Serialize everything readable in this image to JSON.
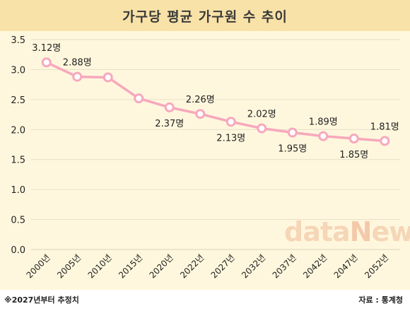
{
  "title": "가구당 평균 가구원 수 추이",
  "note": "※2027년부터 추정치",
  "source": "자료 : 통계청",
  "watermark": {
    "part1": "data",
    "part2": "N",
    "part3": "ews"
  },
  "colors": {
    "title_bg": "#f9e2a8",
    "plot_bg": "#fff7dd",
    "line": "#f7a8bd",
    "marker_fill": "#ffffff"
  },
  "chart_data": {
    "type": "line",
    "title": "가구당 평균 가구원 수 추이",
    "categories": [
      "2000년",
      "2005년",
      "2010년",
      "2015년",
      "2020년",
      "2022년",
      "2027년",
      "2032년",
      "2037년",
      "2042년",
      "2047년",
      "2052년"
    ],
    "values": [
      3.12,
      2.88,
      2.87,
      2.52,
      2.37,
      2.26,
      2.13,
      2.02,
      1.95,
      1.89,
      1.85,
      1.81
    ],
    "data_labels": [
      "3.12명",
      "2.88명",
      "",
      "",
      "2.37명",
      "2.26명",
      "2.13명",
      "2.02명",
      "1.95명",
      "1.89명",
      "1.85명",
      "1.81명"
    ],
    "label_positions": [
      "above",
      "above",
      "none",
      "none",
      "below",
      "above",
      "below",
      "above",
      "below",
      "above",
      "below",
      "above"
    ],
    "ylim": [
      0,
      3.5
    ],
    "yticks": [
      "0.0",
      "0.5",
      "1.0",
      "1.5",
      "2.0",
      "2.5",
      "3.0",
      "3.5"
    ],
    "grid": true,
    "legend": "none"
  }
}
